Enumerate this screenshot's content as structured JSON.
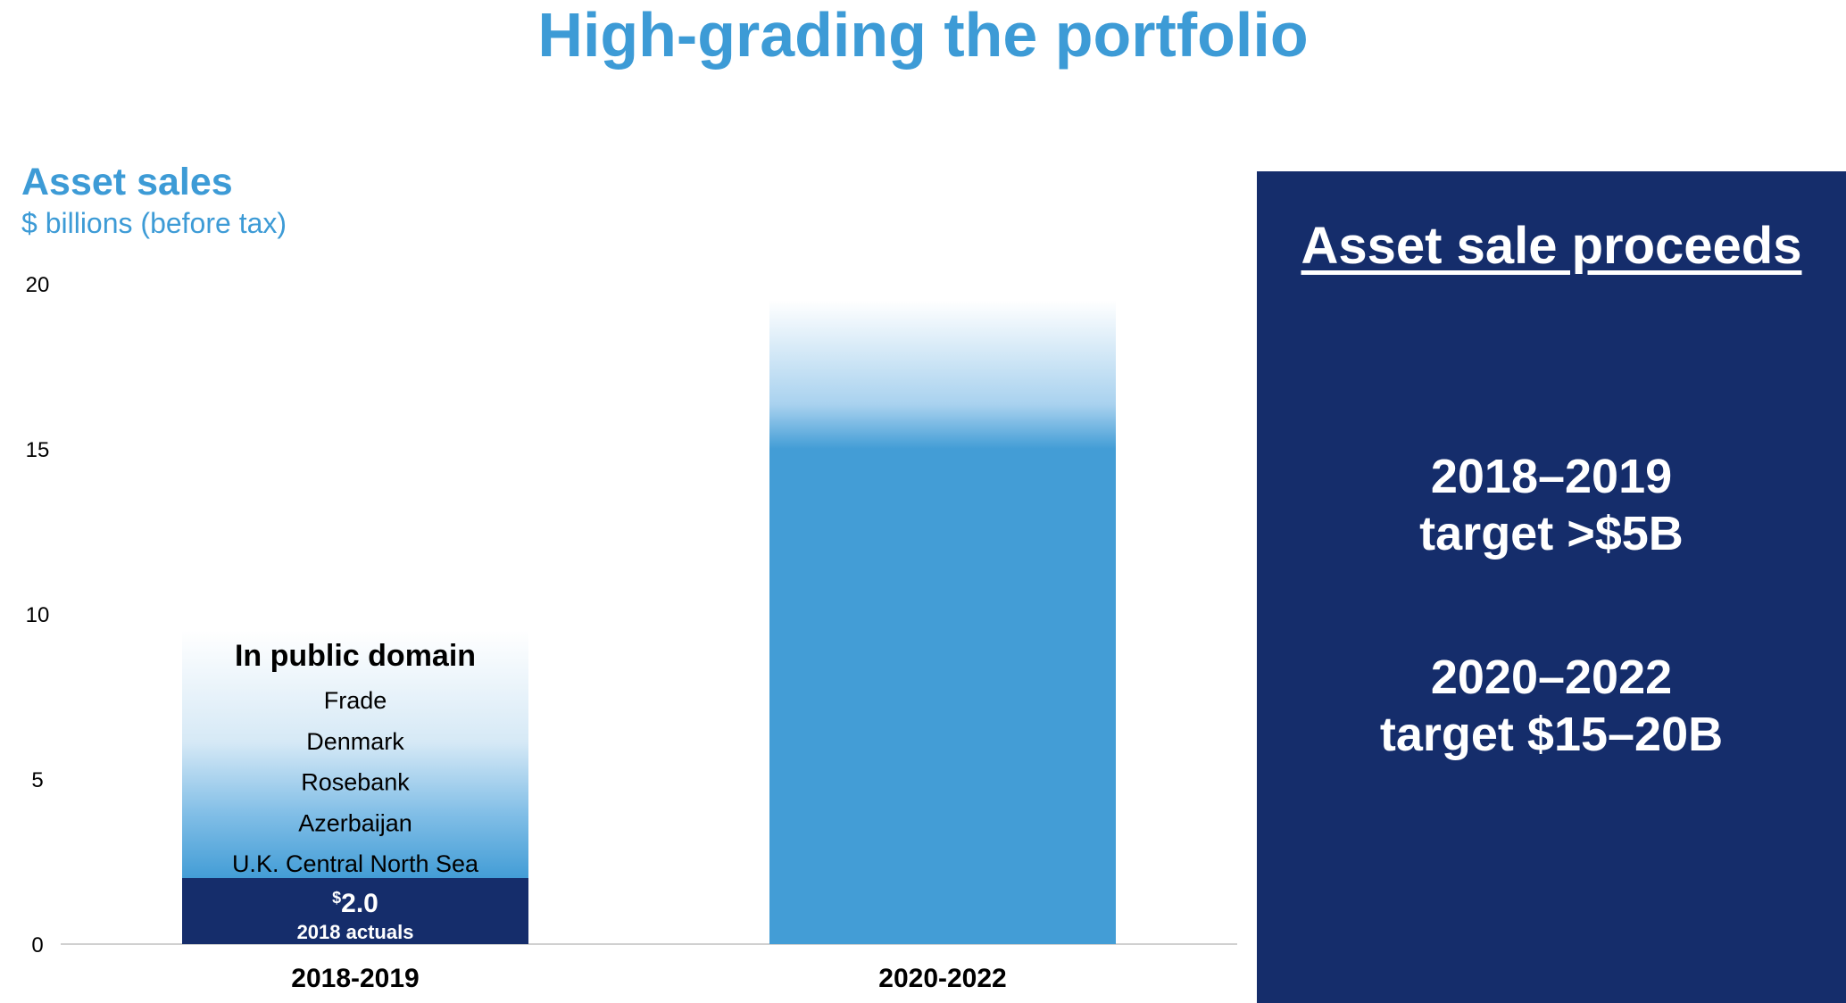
{
  "title": "High-grading the portfolio",
  "chart_data": {
    "type": "bar",
    "title": "Asset sales",
    "subtitle": "$ billions (before tax)",
    "ylim": [
      0,
      20
    ],
    "yticks": [
      0,
      5,
      10,
      15,
      20
    ],
    "categories": [
      "2018-2019",
      "2020-2022"
    ],
    "bars": [
      {
        "category": "2018-2019",
        "actual": 2.0,
        "actual_label_prefix": "$",
        "actual_label_value": "2.0",
        "actual_sublabel": "2018 actuals",
        "faded_top": 9.5,
        "box_heading": "In public domain",
        "items": [
          "Frade",
          "Denmark",
          "Rosebank",
          "Azerbaijan",
          "U.K. Central North Sea"
        ]
      },
      {
        "category": "2020-2022",
        "solid_top": 15,
        "faded_top": 19.5
      }
    ],
    "colors": {
      "actual": "#152d6b",
      "solid": "#439dd6",
      "axis_text": "#000000"
    }
  },
  "side_panel": {
    "heading": "Asset sale proceeds",
    "lines": [
      "2018–2019",
      "target >$5B",
      "2020–2022",
      "target $15–20B"
    ],
    "background": "#152d6b"
  }
}
